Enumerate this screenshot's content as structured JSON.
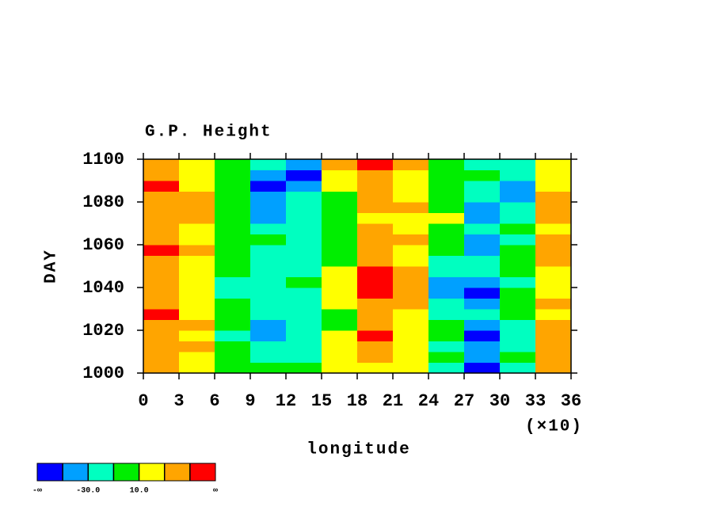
{
  "chart_data": {
    "type": "heatmap",
    "title": "G.P. Height",
    "x_label": "longitude",
    "y_label": "DAY",
    "x_multiplier_label": "(×10)",
    "xlim": [
      0,
      36
    ],
    "xticks": [
      0,
      3,
      6,
      9,
      12,
      15,
      18,
      21,
      24,
      27,
      30,
      33,
      36
    ],
    "ylim": [
      1000,
      1100
    ],
    "yticks": [
      1000,
      1020,
      1040,
      1060,
      1080,
      1100
    ],
    "x": [
      1.5,
      4.5,
      7.5,
      10.5,
      13.5,
      16.5,
      19.5,
      22.5,
      25.5,
      28.5,
      31.5,
      34.5
    ],
    "y": [
      1002.5,
      1007.5,
      1012.5,
      1017.5,
      1022.5,
      1027.5,
      1032.5,
      1037.5,
      1042.5,
      1047.5,
      1052.5,
      1057.5,
      1062.5,
      1067.5,
      1072.5,
      1077.5,
      1082.5,
      1087.5,
      1092.5,
      1097.5
    ],
    "z": [
      [
        35,
        20,
        0,
        5,
        -10,
        10,
        25,
        15,
        -20,
        -55,
        -15,
        30
      ],
      [
        40,
        25,
        -5,
        -15,
        -25,
        15,
        30,
        10,
        -10,
        -35,
        -10,
        35
      ],
      [
        45,
        30,
        -10,
        -30,
        -30,
        20,
        45,
        20,
        -15,
        -40,
        -20,
        40
      ],
      [
        40,
        25,
        -15,
        -45,
        -30,
        15,
        50,
        25,
        -5,
        -55,
        -20,
        35
      ],
      [
        45,
        30,
        -10,
        -35,
        -20,
        5,
        40,
        25,
        -5,
        -50,
        -15,
        30
      ],
      [
        50,
        25,
        -5,
        -20,
        -20,
        0,
        30,
        20,
        -15,
        -30,
        -5,
        25
      ],
      [
        45,
        20,
        -10,
        -15,
        -25,
        10,
        45,
        35,
        -25,
        -40,
        0,
        30
      ],
      [
        40,
        15,
        -15,
        -20,
        -15,
        20,
        55,
        40,
        -35,
        -55,
        -10,
        25
      ],
      [
        35,
        10,
        -20,
        -25,
        -10,
        25,
        55,
        35,
        -45,
        -40,
        -15,
        20
      ],
      [
        40,
        20,
        -10,
        -30,
        -25,
        15,
        50,
        30,
        -30,
        -30,
        -10,
        25
      ],
      [
        45,
        25,
        -5,
        -20,
        -30,
        5,
        35,
        20,
        -15,
        -25,
        -5,
        30
      ],
      [
        50,
        30,
        0,
        -15,
        -25,
        0,
        40,
        25,
        -10,
        -35,
        -5,
        35
      ],
      [
        45,
        25,
        -5,
        -10,
        -20,
        5,
        45,
        30,
        -5,
        -50,
        -15,
        30
      ],
      [
        40,
        20,
        -10,
        -20,
        -15,
        0,
        30,
        20,
        0,
        -30,
        -10,
        25
      ],
      [
        35,
        30,
        0,
        -35,
        -15,
        -5,
        25,
        25,
        10,
        -35,
        -20,
        30
      ],
      [
        40,
        35,
        5,
        -50,
        -20,
        0,
        30,
        30,
        5,
        -40,
        -15,
        35
      ],
      [
        45,
        30,
        0,
        -40,
        -30,
        5,
        30,
        25,
        0,
        -20,
        -35,
        30
      ],
      [
        50,
        25,
        -5,
        -55,
        -35,
        10,
        35,
        25,
        -5,
        -15,
        -40,
        25
      ],
      [
        40,
        20,
        -10,
        -45,
        -55,
        20,
        45,
        20,
        0,
        -10,
        -20,
        20
      ],
      [
        35,
        15,
        -5,
        -25,
        -40,
        35,
        50,
        30,
        5,
        -15,
        -20,
        15
      ]
    ],
    "colorbar": {
      "colors": [
        "#0000ff",
        "#00a0ff",
        "#00ffc0",
        "#00ee00",
        "#ffff00",
        "#ffa500",
        "#ff0000"
      ],
      "levels": [
        -50,
        -30,
        -10,
        10,
        30,
        50
      ],
      "ticks": [
        {
          "value": null,
          "label": "-∞"
        },
        {
          "value": -30,
          "label": "-30.0"
        },
        {
          "value": 10,
          "label": "10.0"
        },
        {
          "value": null,
          "label": "∞"
        }
      ]
    }
  }
}
